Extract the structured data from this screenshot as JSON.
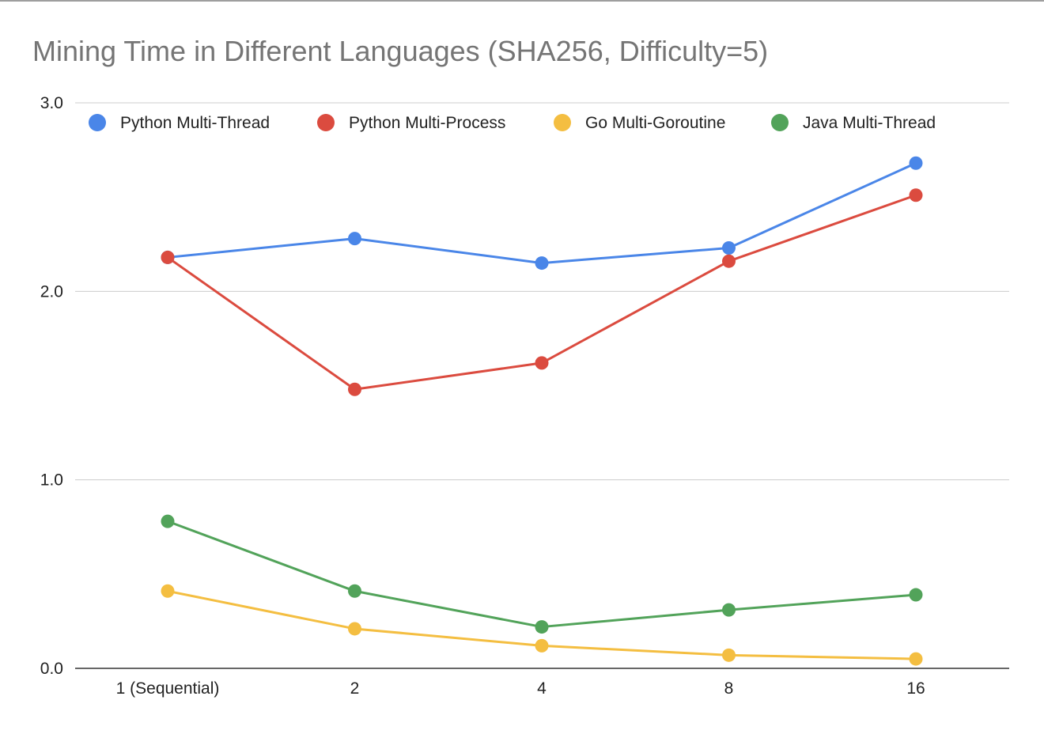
{
  "chart_data": {
    "type": "line",
    "title": "Mining Time in Different Languages (SHA256, Difficulty=5)",
    "xlabel": "",
    "ylabel": "",
    "categories": [
      "1 (Sequential)",
      "2",
      "4",
      "8",
      "16"
    ],
    "ylim": [
      0,
      3
    ],
    "yticks": [
      "0.0",
      "1.0",
      "2.0",
      "3.0"
    ],
    "grid": true,
    "legend_position": "top",
    "series": [
      {
        "name": "Python Multi-Thread",
        "color": "#4a86e8",
        "values": [
          2.18,
          2.28,
          2.15,
          2.23,
          2.68
        ]
      },
      {
        "name": "Python Multi-Process",
        "color": "#db4b3f",
        "values": [
          2.18,
          1.48,
          1.62,
          2.16,
          2.51
        ]
      },
      {
        "name": "Go Multi-Goroutine",
        "color": "#f4be41",
        "values": [
          0.41,
          0.21,
          0.12,
          0.07,
          0.05
        ]
      },
      {
        "name": "Java Multi-Thread",
        "color": "#52a35a",
        "values": [
          0.78,
          0.41,
          0.22,
          0.31,
          0.39
        ]
      }
    ]
  }
}
